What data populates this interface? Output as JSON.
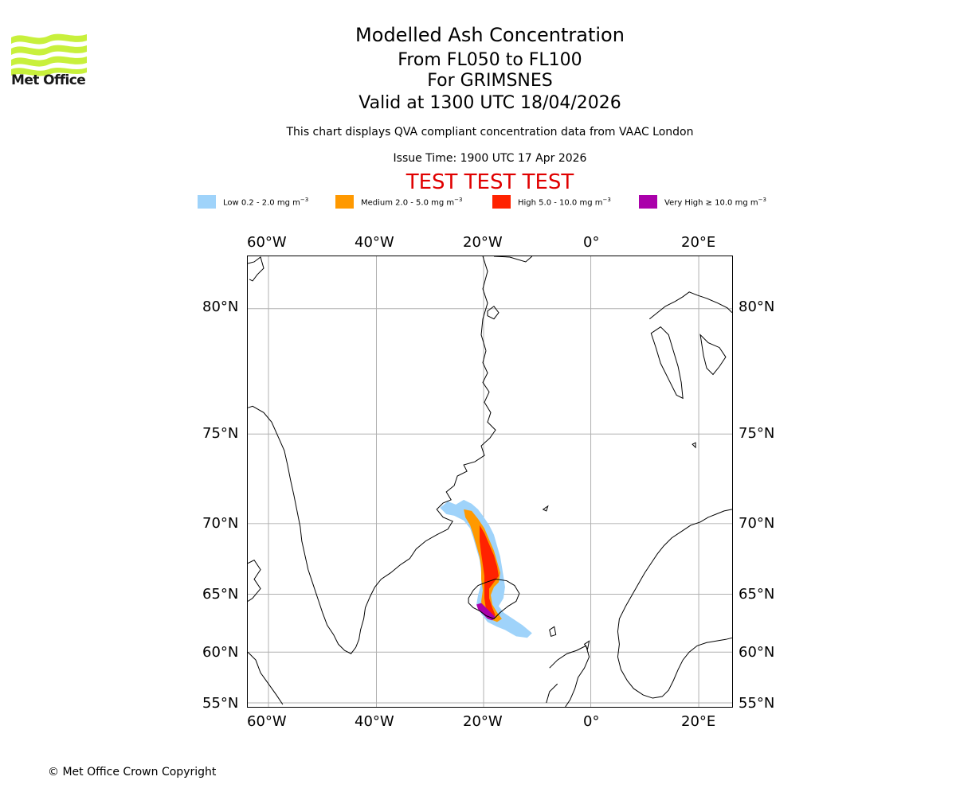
{
  "header": {
    "title": "Modelled Ash Concentration",
    "levels": "From FL050 to FL100",
    "volcano": "For GRIMSNES",
    "valid": "Valid at 1300 UTC 18/04/2026",
    "note": "This chart displays QVA compliant concentration data from VAAC London",
    "issue": "Issue Time: 1900 UTC 17 Apr 2026",
    "test": "TEST TEST TEST"
  },
  "logo": {
    "text": "Met Office",
    "color": "#c8f03c"
  },
  "legend": [
    {
      "label": "Low 0.2 - 2.0 mg m",
      "color": "#9fd3fa",
      "exp": "−3"
    },
    {
      "label": "Medium 2.0 - 5.0 mg m",
      "color": "#ff9900",
      "exp": "−3"
    },
    {
      "label": "High 5.0 - 10.0 mg m",
      "color": "#ff2200",
      "exp": "−3"
    },
    {
      "label": "Very High  ≥  10.0 mg m",
      "color": "#aa00aa",
      "exp": "−3"
    }
  ],
  "map": {
    "lon_ticks": [
      "60°W",
      "40°W",
      "20°W",
      "0°",
      "20°E"
    ],
    "lat_ticks": [
      "80°N",
      "75°N",
      "70°N",
      "65°N",
      "60°N",
      "55°N"
    ],
    "grid_color": "#b0b0b0",
    "coast_color": "#000000"
  },
  "footer": {
    "copyright": "© Met Office Crown Copyright"
  }
}
